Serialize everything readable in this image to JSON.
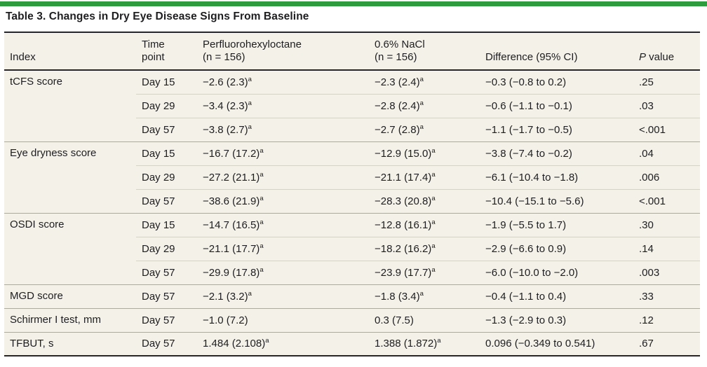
{
  "colors": {
    "accent_green": "#2D9C3F",
    "row_bg": "#F3F1E8",
    "rule_dark": "#26262A",
    "rule_light": "#D5D2C8",
    "rule_group": "#ACA99F",
    "text": "#1E1E21"
  },
  "table": {
    "title": "Table 3. Changes in Dry Eye Disease Signs From Baseline",
    "footnote_marker": "a",
    "header": {
      "index": "Index",
      "time_point": "Time\npoint",
      "drug": "Perfluorohexyloctane\n(n = 156)",
      "nacl": "0.6% NaCl\n(n = 156)",
      "difference": "Difference (95% CI)",
      "p_italic": "P",
      "p_rest": " value"
    },
    "rows": [
      {
        "index": "tCFS score",
        "rowspan": 3,
        "group_start": true,
        "time": "Day 15",
        "drug": "−2.6 (2.3)",
        "drug_sup": "a",
        "nacl": "−2.3 (2.4)",
        "nacl_sup": "a",
        "diff": "−0.3 (−0.8 to 0.2)",
        "p": ".25"
      },
      {
        "group_start": false,
        "time": "Day 29",
        "drug": "−3.4 (2.3)",
        "drug_sup": "a",
        "nacl": "−2.8 (2.4)",
        "nacl_sup": "a",
        "diff": "−0.6 (−1.1 to −0.1)",
        "p": ".03"
      },
      {
        "group_start": false,
        "time": "Day 57",
        "drug": "−3.8 (2.7)",
        "drug_sup": "a",
        "nacl": "−2.7 (2.8)",
        "nacl_sup": "a",
        "diff": "−1.1 (−1.7 to −0.5)",
        "p": "<.001"
      },
      {
        "index": "Eye dryness score",
        "rowspan": 3,
        "group_start": true,
        "time": "Day 15",
        "drug": "−16.7 (17.2)",
        "drug_sup": "a",
        "nacl": "−12.9 (15.0)",
        "nacl_sup": "a",
        "diff": "−3.8 (−7.4 to −0.2)",
        "p": ".04"
      },
      {
        "group_start": false,
        "time": "Day 29",
        "drug": "−27.2 (21.1)",
        "drug_sup": "a",
        "nacl": "−21.1 (17.4)",
        "nacl_sup": "a",
        "diff": "−6.1 (−10.4 to −1.8)",
        "p": ".006"
      },
      {
        "group_start": false,
        "time": "Day 57",
        "drug": "−38.6 (21.9)",
        "drug_sup": "a",
        "nacl": "−28.3 (20.8)",
        "nacl_sup": "a",
        "diff": "−10.4 (−15.1 to −5.6)",
        "p": "<.001"
      },
      {
        "index": "OSDI score",
        "rowspan": 3,
        "group_start": true,
        "time": "Day 15",
        "drug": "−14.7 (16.5)",
        "drug_sup": "a",
        "nacl": "−12.8 (16.1)",
        "nacl_sup": "a",
        "diff": "−1.9 (−5.5 to 1.7)",
        "p": ".30"
      },
      {
        "group_start": false,
        "time": "Day 29",
        "drug": "−21.1 (17.7)",
        "drug_sup": "a",
        "nacl": "−18.2 (16.2)",
        "nacl_sup": "a",
        "diff": "−2.9 (−6.6 to 0.9)",
        "p": ".14"
      },
      {
        "group_start": false,
        "time": "Day 57",
        "drug": "−29.9 (17.8)",
        "drug_sup": "a",
        "nacl": "−23.9 (17.7)",
        "nacl_sup": "a",
        "diff": "−6.0 (−10.0 to −2.0)",
        "p": ".003"
      },
      {
        "index": "MGD score",
        "rowspan": 1,
        "group_start": true,
        "time": "Day 57",
        "drug": "−2.1 (3.2)",
        "drug_sup": "a",
        "nacl": "−1.8 (3.4)",
        "nacl_sup": "a",
        "diff": "−0.4 (−1.1 to 0.4)",
        "p": ".33"
      },
      {
        "index": "Schirmer I test, mm",
        "rowspan": 1,
        "group_start": true,
        "time": "Day 57",
        "drug": "−1.0 (7.2)",
        "drug_sup": "",
        "nacl": "0.3 (7.5)",
        "nacl_sup": "",
        "diff": "−1.3 (−2.9 to 0.3)",
        "p": ".12"
      },
      {
        "index": "TFBUT, s",
        "rowspan": 1,
        "group_start": true,
        "time": "Day 57",
        "drug": "1.484 (2.108)",
        "drug_sup": "a",
        "nacl": "1.388 (1.872)",
        "nacl_sup": "a",
        "diff": "0.096 (−0.349 to 0.541)",
        "p": ".67"
      }
    ]
  }
}
